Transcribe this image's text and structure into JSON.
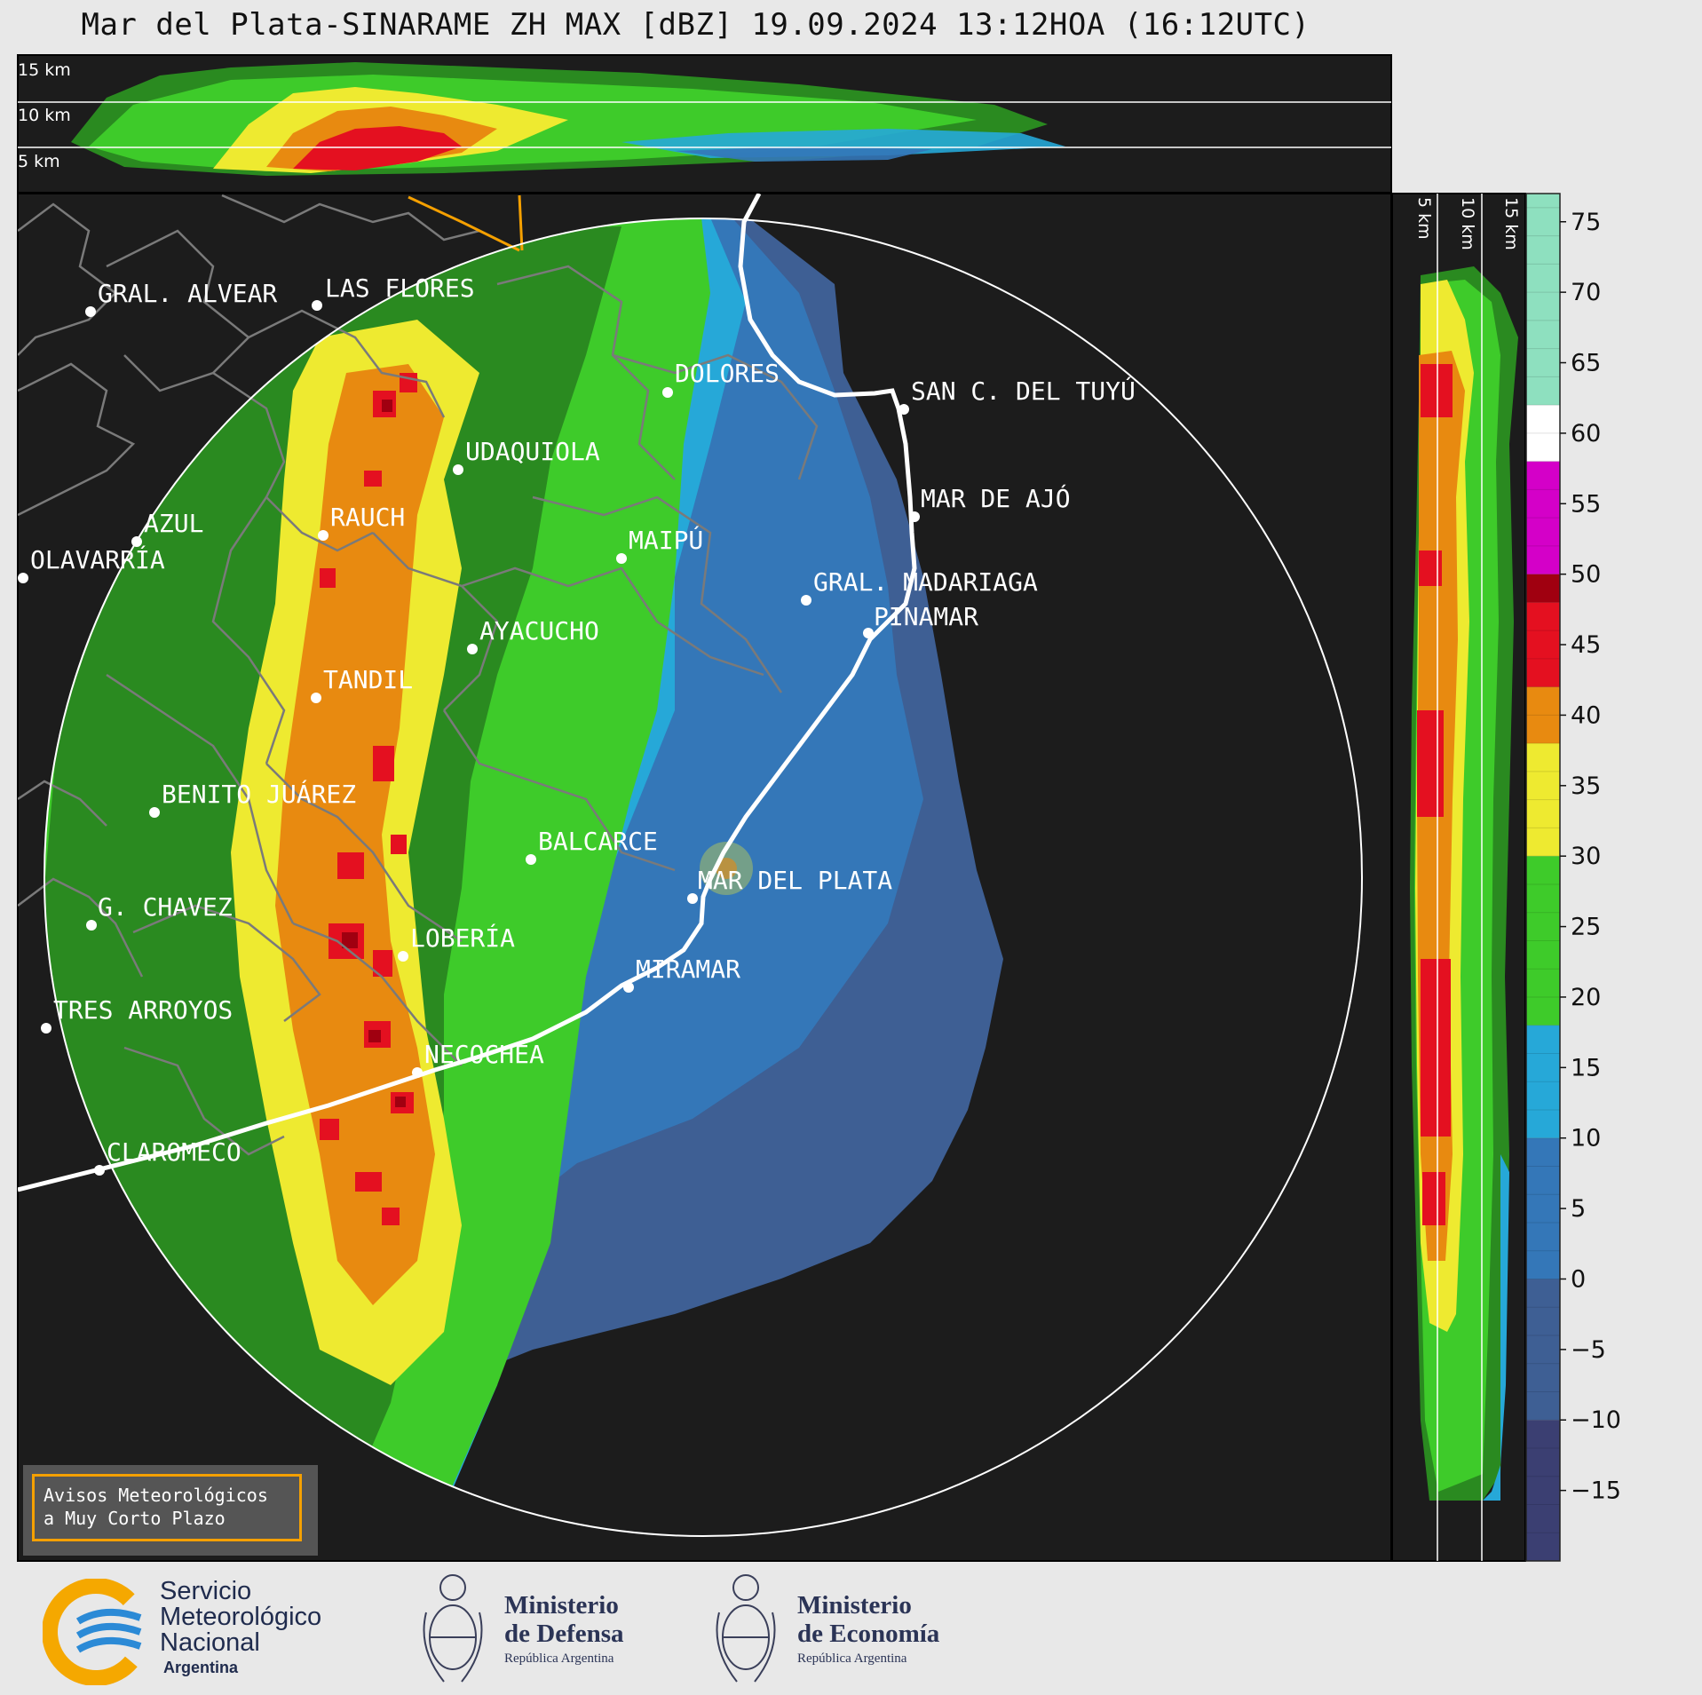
{
  "title": "Mar del Plata-SINARAME ZH MAX [dBZ] 19.09.2024 13:12HOA (16:12UTC)",
  "top_panel": {
    "height_labels": [
      "15 km",
      "10 km",
      "5 km"
    ]
  },
  "side_panel": {
    "height_labels": [
      "5 km",
      "10 km",
      "15 km"
    ]
  },
  "colorbar": {
    "ticks": [
      "75",
      "70",
      "65",
      "60",
      "55",
      "50",
      "45",
      "40",
      "35",
      "30",
      "25",
      "20",
      "15",
      "10",
      "5",
      "0",
      "−5",
      "−10",
      "−15"
    ],
    "colors": {
      "teal_high": "#8ee0bf",
      "white": "#ffffff",
      "magenta": "#d400c8",
      "dark_red": "#a00010",
      "red": "#e41020",
      "orange": "#e88a10",
      "yellow": "#eeea30",
      "dark_green": "#2a8a20",
      "green": "#3ecb2a",
      "light_blue": "#26a8d8",
      "blue": "#3477b8",
      "steel": "#3e5f94",
      "navy": "#3b3f72"
    }
  },
  "cities": [
    "GRAL. ALVEAR",
    "LAS FLORES",
    "DOLORES",
    "SAN C. DEL TUYÚ",
    "UDAQUIOLA",
    "RAUCH",
    "AZUL",
    "MAR DE AJÓ",
    "OLAVARRÍA",
    "MAIPÚ",
    "GRAL. MADARIAGA",
    "PINAMAR",
    "AYACUCHO",
    "TANDIL",
    "BENITO JUÁREZ",
    "BALCARCE",
    "MAR DEL PLATA",
    "G. CHAVEZ",
    "LOBERÍA",
    "MIRAMAR",
    "TRES ARROYOS",
    "NECOCHEA",
    "CLAROMECO"
  ],
  "warning_box": {
    "line1": "Avisos Meteorológicos",
    "line2": "a Muy Corto Plazo"
  },
  "logos": {
    "smn": {
      "line1": "Servicio",
      "line2": "Meteorológico",
      "line3": "Nacional",
      "line4": "Argentina"
    },
    "defensa": {
      "title1": "Ministerio",
      "title2": "de Defensa",
      "sub": "República Argentina"
    },
    "economia": {
      "title1": "Ministerio",
      "title2": "de Economía",
      "sub": "República Argentina"
    }
  },
  "map_style": {
    "background": "#1c1c1c",
    "coast": "#ffffff",
    "borders": "#7a7a7a",
    "range_ring": "#ffffff",
    "highlight_border": "#f5a000"
  }
}
